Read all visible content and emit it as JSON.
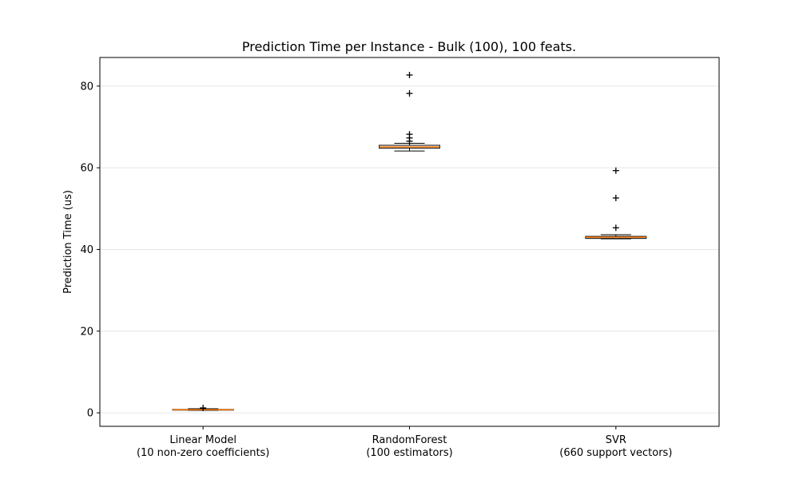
{
  "chart_data": {
    "type": "box",
    "title": "Prediction Time per Instance - Bulk (100), 100 feats.",
    "xlabel": "",
    "ylabel": "Prediction Time (us)",
    "ylim": [
      -3.3,
      87
    ],
    "yticks": [
      "0",
      "20",
      "40",
      "60",
      "80"
    ],
    "grid": "horizontal",
    "categories": [
      {
        "line1": "Linear Model",
        "line2": "(10 non-zero coefficients)"
      },
      {
        "line1": "RandomForest",
        "line2": "(100 estimators)"
      },
      {
        "line1": "SVR",
        "line2": "(660 support vectors)"
      }
    ],
    "boxes": [
      {
        "whislo": 0.6,
        "q1": 0.7,
        "med": 0.75,
        "q3": 0.85,
        "whishi": 1.0,
        "fliers": [
          1.2
        ]
      },
      {
        "whislo": 64.1,
        "q1": 64.8,
        "med": 65.1,
        "q3": 65.5,
        "whishi": 66.0,
        "fliers": [
          66.5,
          67.3,
          68.2,
          78.2,
          82.7
        ]
      },
      {
        "whislo": 42.6,
        "q1": 42.7,
        "med": 43.0,
        "q3": 43.2,
        "whishi": 43.6,
        "fliers": [
          45.3,
          52.6,
          59.3
        ]
      }
    ],
    "colors": {
      "median": "#ff7f0e",
      "box": "#000000",
      "grid": "#e6e6e6"
    }
  }
}
